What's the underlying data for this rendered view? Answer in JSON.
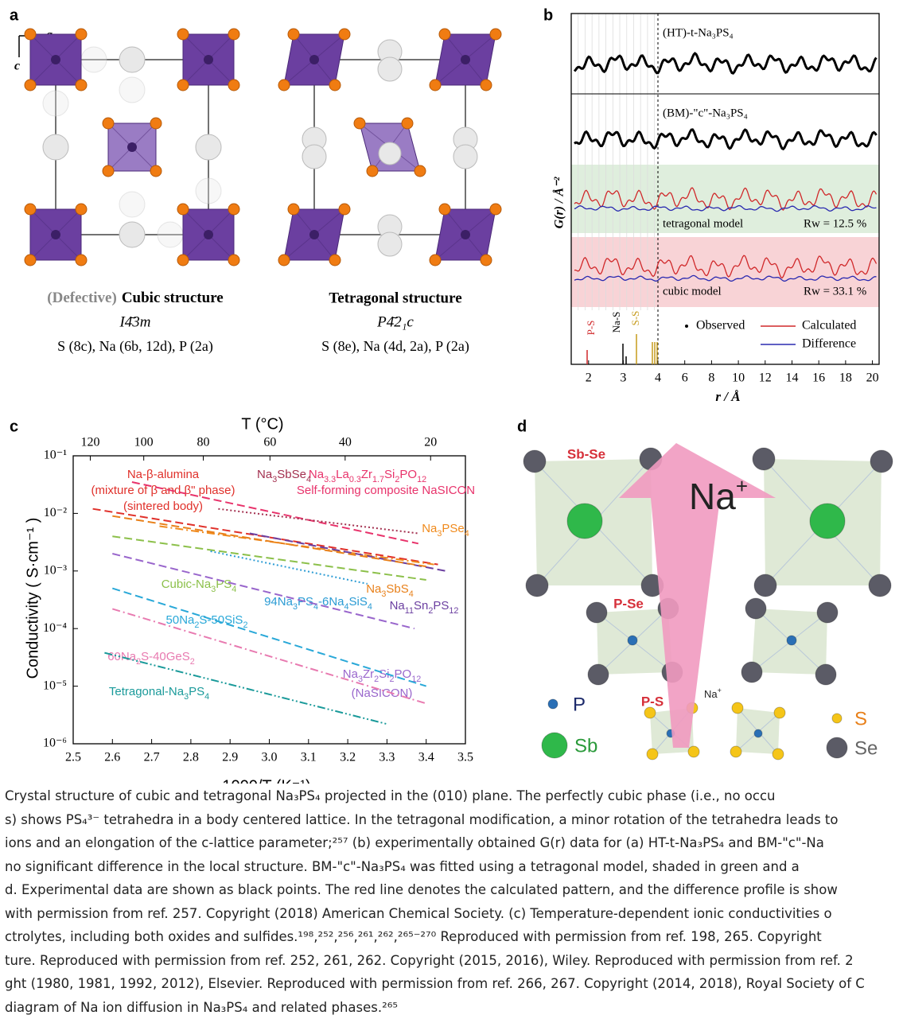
{
  "panel_a": {
    "label": "a",
    "axis_a": "a",
    "axis_c": "c",
    "cubic": {
      "qualifier": "(Defective)",
      "title": "Cubic structure",
      "space_group": "I4̄3m",
      "sites": "S (8c), Na (6b, 12d), P (2a)"
    },
    "tetragonal": {
      "title": "Tetragonal structure",
      "space_group": "P4̄2₁c",
      "sites": "S (8e), Na (4d, 2a), P (2a)"
    }
  },
  "panel_b": {
    "label": "b",
    "y_label": "G(r) / Å⁻²",
    "x_label": "r / Å",
    "xlim": [
      1.5,
      20.5
    ],
    "xticks": [
      2,
      3,
      4,
      6,
      8,
      10,
      12,
      14,
      16,
      18,
      20
    ],
    "traces": [
      "(HT)-t-Na₃PS₄",
      "(BM)-\"c\"-Na₃PS₄"
    ],
    "fits": [
      {
        "model": "tetragonal model",
        "rw": "Rw = 12.5 %"
      },
      {
        "model": "cubic model",
        "rw": "Rw = 33.1 %"
      }
    ],
    "peaks": [
      "P-S",
      "Na-S",
      "S-S"
    ],
    "legend": [
      "Observed",
      "Calculated",
      "Difference"
    ]
  },
  "panel_c": {
    "label": "c",
    "type": "line",
    "top_label": "T (°C)",
    "x_label": "1000/T (K⁻¹)",
    "y_label": "Conductivity ( S·cm⁻¹ )",
    "top_ticks": [
      120,
      100,
      80,
      60,
      40,
      20
    ],
    "xlim": [
      2.5,
      3.5
    ],
    "ylim": [
      1e-06,
      0.1
    ],
    "log_y": true,
    "xticks": [
      2.5,
      2.6,
      2.7,
      2.8,
      2.9,
      {
        "value": 3,
        "label": "3.0"
      },
      3.1,
      3.2,
      3.3,
      3.4,
      3.5
    ],
    "yticks": [
      {
        "value": 1e-06,
        "label": "10⁻⁶"
      },
      {
        "value": 1e-05,
        "label": "10⁻⁵"
      },
      {
        "value": 0.0001,
        "label": "10⁻⁴"
      },
      {
        "value": 0.001,
        "label": "10⁻³"
      },
      {
        "value": 0.01,
        "label": "10⁻²"
      },
      {
        "value": 0.1,
        "label": "10⁻¹"
      }
    ],
    "series": [
      {
        "label": [
          "Na-β-alumina",
          "(mixture of β and β\" phase)",
          "(sintered body)"
        ],
        "color": "#e0302a",
        "style": "dashed",
        "x": [
          2.55,
          3.43
        ],
        "values": [
          0.012,
          0.0013
        ]
      },
      {
        "label": [
          "Na3.3La0.3Zr1.7Si2PO12",
          "Self-forming composite NaSICON"
        ],
        "color": "#e8336b",
        "style": "dashed",
        "x": [
          2.65,
          3.38
        ],
        "values": [
          0.035,
          0.003
        ]
      },
      {
        "label": [
          "Na3SbSe4"
        ],
        "color": "#a3304f",
        "style": "dotted",
        "x": [
          2.87,
          3.38
        ],
        "values": [
          0.012,
          0.0045
        ]
      },
      {
        "label": [
          "Na3PSe4"
        ],
        "color": "#f08a1c",
        "style": "dashdot",
        "x": [
          2.72,
          3.42
        ],
        "values": [
          0.006,
          0.0013
        ]
      },
      {
        "label": [
          "Na11Sn2PS12"
        ],
        "color": "#6b3fa0",
        "style": "dashed",
        "x": [
          2.95,
          3.45
        ],
        "values": [
          0.0045,
          0.001
        ]
      },
      {
        "label": [
          "Na3SbS4"
        ],
        "color": "#e8801a",
        "style": "dashed",
        "x": [
          2.6,
          3.4
        ],
        "values": [
          0.009,
          0.0012
        ]
      },
      {
        "label": [
          "Cubic-Na3PS4"
        ],
        "color": "#8cc04a",
        "style": "dashed",
        "x": [
          2.6,
          3.4
        ],
        "values": [
          0.004,
          0.0007
        ]
      },
      {
        "label": [
          "94Na3PS4-6Na4SiS4"
        ],
        "color": "#2a9bd4",
        "style": "dotted",
        "x": [
          2.85,
          3.25
        ],
        "values": [
          0.0022,
          0.0006
        ]
      },
      {
        "label": [
          "Na3Zr2Si2PO12",
          "(NaSICON)"
        ],
        "color": "#9966cc",
        "style": "dashed",
        "x": [
          2.6,
          3.37
        ],
        "values": [
          0.002,
          0.0001
        ]
      },
      {
        "label": [
          "50Na2S-50SiS2"
        ],
        "color": "#29a8d8",
        "style": "dashed",
        "x": [
          2.6,
          3.4
        ],
        "values": [
          0.0005,
          1e-05
        ]
      },
      {
        "label": [
          "60Na2S-40GeS2"
        ],
        "color": "#e87ab0",
        "style": "dashdot",
        "x": [
          2.6,
          3.4
        ],
        "values": [
          0.00022,
          5e-06
        ]
      },
      {
        "label": [
          "Tetragonal-Na3PS4"
        ],
        "color": "#1a9a9a",
        "style": "dashdotdot",
        "x": [
          2.58,
          3.3
        ],
        "values": [
          3.8e-05,
          2.2e-06
        ]
      }
    ]
  },
  "panel_d": {
    "label": "d",
    "sites": [
      "Sb-Se",
      "P-Se",
      "P-S"
    ],
    "ion": "Na",
    "charge": "+",
    "legend": [
      "P",
      "Sb",
      "S",
      "Se"
    ]
  },
  "caption": [
    "Crystal structure of cubic and tetragonal Na₃PS₄ projected in the (010) plane. The perfectly cubic phase (i.e., no occu",
    "s) shows PS₄³⁻ tetrahedra in a body centered lattice. In the tetragonal modification, a minor rotation of the tetrahedra leads to",
    "ions and an elongation of the c-lattice parameter;²⁵⁷ (b) experimentally obtained G(r) data for (a) HT-t-Na₃PS₄ and BM-\"c\"-Na",
    "no significant difference in the local structure. BM-\"c\"-Na₃PS₄ was fitted using a tetragonal model, shaded in green and a",
    "d. Experimental data are shown as black points. The red line denotes the calculated pattern, and the difference profile is show",
    "with permission from ref. 257. Copyright (2018) American Chemical Society. (c) Temperature-dependent ionic conductivities o",
    "ctrolytes, including both oxides and sulfides.¹⁹⁸,²⁵²,²⁵⁶,²⁶¹,²⁶²,²⁶⁵⁻²⁷⁰ Reproduced with permission from ref. 198, 265. Copyright",
    "ture. Reproduced with permission from ref. 252, 261, 262. Copyright (2015, 2016), Wiley. Reproduced with permission from ref. 2",
    "ght (1980, 1981, 1992, 2012), Elsevier. Reproduced with permission from ref. 266, 267. Copyright (2014, 2018), Royal Society of C",
    "diagram of Na ion diffusion in Na₃PS₄ and related phases.²⁶⁵"
  ]
}
